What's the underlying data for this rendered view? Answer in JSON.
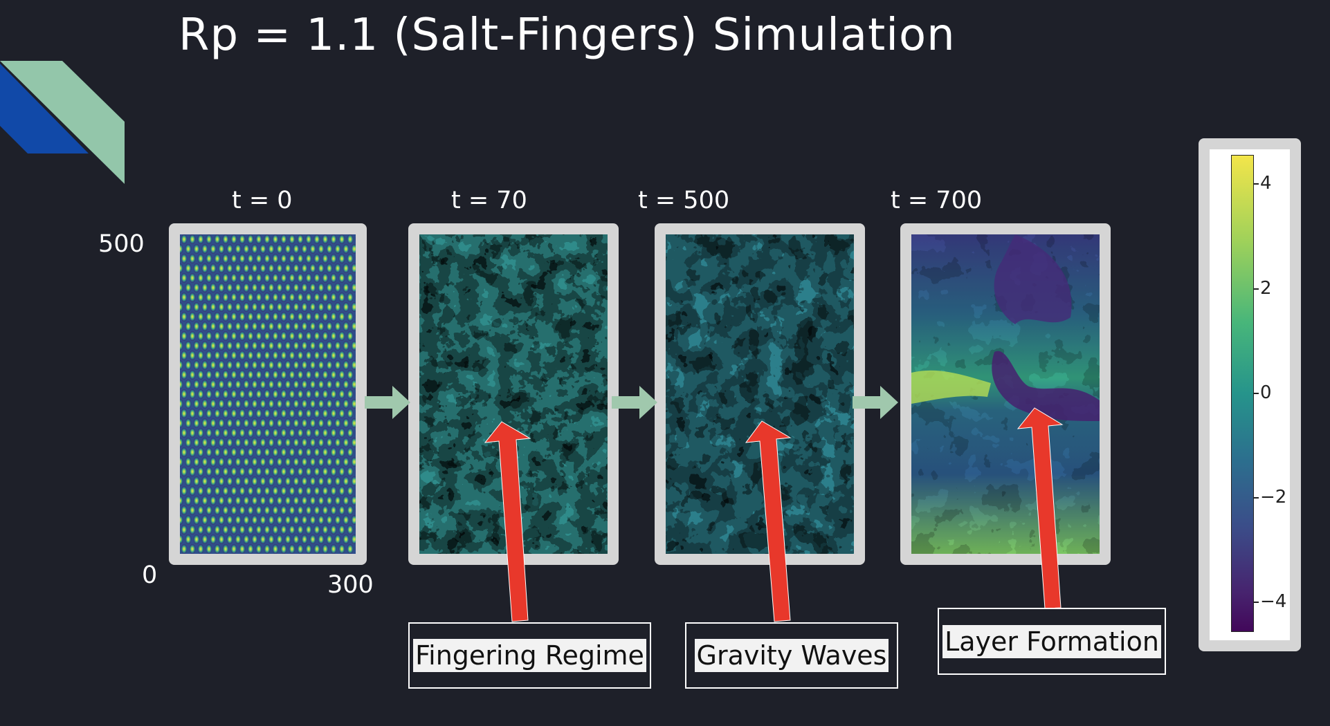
{
  "title": "Rp = 1.1 (Salt-Fingers) Simulation",
  "panels": [
    {
      "time_label": "t = 0"
    },
    {
      "time_label": "t = 70"
    },
    {
      "time_label": "t = 500"
    },
    {
      "time_label": "t = 700"
    }
  ],
  "axis": {
    "y_top": "500",
    "y_bottom": "0",
    "x_right": "300"
  },
  "callouts": [
    "Fingering Regime",
    "Gravity Waves",
    "Layer Formation"
  ],
  "colorbar": {
    "ticks": [
      "4",
      "2",
      "0",
      "−2",
      "−4"
    ]
  },
  "colors": {
    "background": "#1e2029",
    "arrow_red": "#e8382b",
    "flow_arrow": "#a0c8ad",
    "deco_green": "#93c6aa",
    "deco_blue": "#1149a8"
  }
}
